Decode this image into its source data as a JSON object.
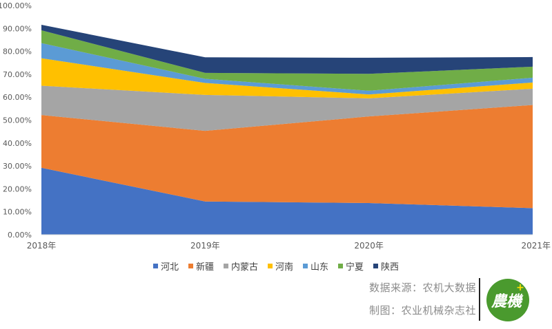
{
  "chart_data": {
    "type": "area",
    "stacked": true,
    "categories": [
      "2018年",
      "2019年",
      "2020年",
      "2021年"
    ],
    "y_ticks": [
      "0.00%",
      "10.00%",
      "20.00%",
      "30.00%",
      "40.00%",
      "50.00%",
      "60.00%",
      "70.00%",
      "80.00%",
      "90.00%",
      "100.00%"
    ],
    "ylim": [
      0,
      100
    ],
    "grid": false,
    "legend_position": "bottom",
    "series": [
      {
        "name": "河北",
        "color": "#4472c4",
        "values": [
          29.2,
          14.5,
          13.8,
          11.6
        ]
      },
      {
        "name": "新疆",
        "color": "#ed7d31",
        "values": [
          23.0,
          30.8,
          37.8,
          45.0
        ]
      },
      {
        "name": "内蒙古",
        "color": "#a5a5a5",
        "values": [
          12.8,
          15.7,
          7.9,
          7.1
        ]
      },
      {
        "name": "河南",
        "color": "#ffc000",
        "values": [
          12.0,
          5.2,
          1.7,
          2.7
        ]
      },
      {
        "name": "山东",
        "color": "#5b9bd5",
        "values": [
          6.6,
          1.8,
          1.6,
          2.1
        ]
      },
      {
        "name": "宁夏",
        "color": "#70ad47",
        "values": [
          5.6,
          2.6,
          7.4,
          4.8
        ]
      },
      {
        "name": "陕西",
        "color": "#264478",
        "values": [
          2.4,
          6.8,
          7.0,
          4.2
        ]
      }
    ]
  },
  "source": {
    "line1": "数据来源：农机大数据",
    "line2": "制图：农业机械杂志社"
  },
  "logo": {
    "text": "農機",
    "plus": "+",
    "bg_color": "#4a9a2e"
  }
}
